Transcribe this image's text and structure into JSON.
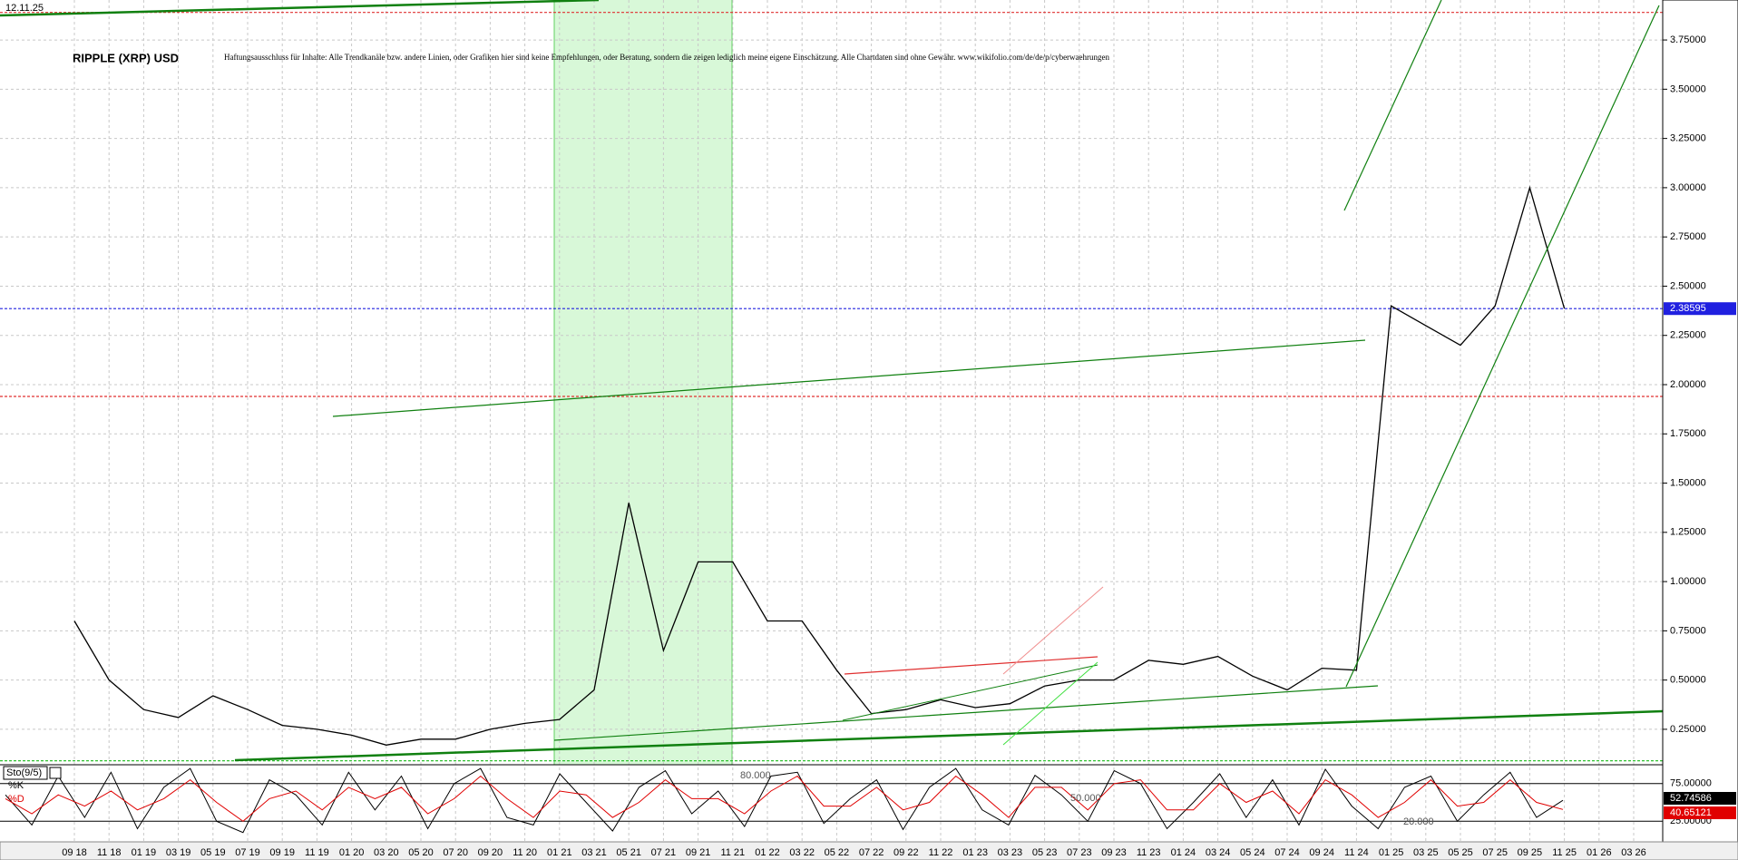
{
  "chart_data": [
    {
      "type": "line",
      "title": "RIPPLE (XRP) USD",
      "subtitle": "Haftungsausschluss für Inhalte: Alle Trendkanäle bzw. andere Linien, oder Grafiken hier sind keine Empfehlungen, oder Beratung, sondern die zeigen lediglich meine eigene Einschätzung. Alle Chartdaten sind ohne Gewähr. www.wikifolio.com/de/de/p/cyberwaehrungen",
      "date_label": "12.11.25",
      "categories": [
        "09 18",
        "11 18",
        "01 19",
        "03 19",
        "05 19",
        "07 19",
        "09 19",
        "11 19",
        "01 20",
        "03 20",
        "05 20",
        "07 20",
        "09 20",
        "11 20",
        "01 21",
        "03 21",
        "05 21",
        "07 21",
        "09 21",
        "11 21",
        "01 22",
        "03 22",
        "05 22",
        "07 22",
        "09 22",
        "11 22",
        "01 23",
        "03 23",
        "05 23",
        "07 23",
        "09 23",
        "11 23",
        "01 24",
        "03 24",
        "05 24",
        "07 24",
        "09 24",
        "11 24",
        "01 25",
        "03 25",
        "05 25",
        "07 25",
        "09 25",
        "11 25",
        "01 26",
        "03 26"
      ],
      "values": [
        0.8,
        0.5,
        0.35,
        0.31,
        0.42,
        0.35,
        0.27,
        0.25,
        0.22,
        0.17,
        0.2,
        0.2,
        0.25,
        0.28,
        0.3,
        0.45,
        1.4,
        0.65,
        1.1,
        1.1,
        0.8,
        0.8,
        0.55,
        0.33,
        0.35,
        0.4,
        0.36,
        0.38,
        0.47,
        0.5,
        0.5,
        0.6,
        0.58,
        0.62,
        0.52,
        0.45,
        0.56,
        0.55,
        2.4,
        2.3,
        2.2,
        2.4,
        3.0,
        2.38595,
        null,
        null
      ],
      "color": "#000000",
      "last_price": 2.38595,
      "hlines": [
        {
          "value": 3.89,
          "color": "#e03030"
        },
        {
          "value": 1.94,
          "color": "#e03030"
        },
        {
          "value": 2.38595,
          "color": "#2020e0"
        },
        {
          "value": 0.09,
          "color": "#30c030"
        }
      ],
      "ylim": [
        0.07,
        3.953
      ],
      "yticks": [
        {
          "value": 0.25,
          "label": "0.25000"
        },
        {
          "value": 0.5,
          "label": "0.50000"
        },
        {
          "value": 0.75,
          "label": "0.75000"
        },
        {
          "value": 1.0,
          "label": "1.00000"
        },
        {
          "value": 1.25,
          "label": "1.25000"
        },
        {
          "value": 1.5,
          "label": "1.50000"
        },
        {
          "value": 1.75,
          "label": "1.75000"
        },
        {
          "value": 2.0,
          "label": "2.00000"
        },
        {
          "value": 2.25,
          "label": "2.25000"
        },
        {
          "value": 2.5,
          "label": "2.50000"
        },
        {
          "value": 2.75,
          "label": "2.75000"
        },
        {
          "value": 3.0,
          "label": "3.00000"
        },
        {
          "value": 3.25,
          "label": "3.25000"
        },
        {
          "value": 3.5,
          "label": "3.50000"
        },
        {
          "value": 3.75,
          "label": "3.75000"
        }
      ],
      "grid": true
    },
    {
      "type": "line",
      "title": "Sto(9/5)",
      "series": [
        {
          "name": "%K",
          "color": "#000000",
          "values": [
            60,
            20,
            85,
            30,
            90,
            15,
            70,
            95,
            25,
            10,
            80,
            60,
            20,
            90,
            40,
            85,
            15,
            75,
            95,
            30,
            20,
            88,
            50,
            12,
            70,
            92,
            35,
            65,
            18,
            85,
            90,
            22,
            55,
            80,
            14,
            70,
            95,
            40,
            20,
            86,
            60,
            25,
            92,
            75,
            15,
            50,
            88,
            30,
            80,
            20,
            94,
            45,
            15,
            70,
            85,
            25,
            60,
            90,
            30,
            52.74586
          ]
        },
        {
          "name": "%D",
          "color": "#e00000",
          "values": [
            55,
            35,
            60,
            45,
            65,
            40,
            55,
            80,
            50,
            25,
            55,
            65,
            40,
            70,
            55,
            70,
            35,
            55,
            85,
            55,
            30,
            65,
            60,
            30,
            50,
            80,
            55,
            55,
            35,
            65,
            85,
            45,
            45,
            70,
            40,
            50,
            85,
            60,
            30,
            70,
            70,
            40,
            75,
            80,
            40,
            40,
            75,
            50,
            65,
            35,
            80,
            60,
            30,
            50,
            80,
            45,
            50,
            80,
            50,
            40.65121
          ]
        }
      ],
      "level_labels": [
        "80.000",
        "50.000",
        "20.000"
      ],
      "ylim": [
        0,
        100
      ],
      "yticks": [
        {
          "value": 25,
          "label": "25.00000"
        },
        {
          "value": 75,
          "label": "75.00000"
        }
      ]
    }
  ]
}
